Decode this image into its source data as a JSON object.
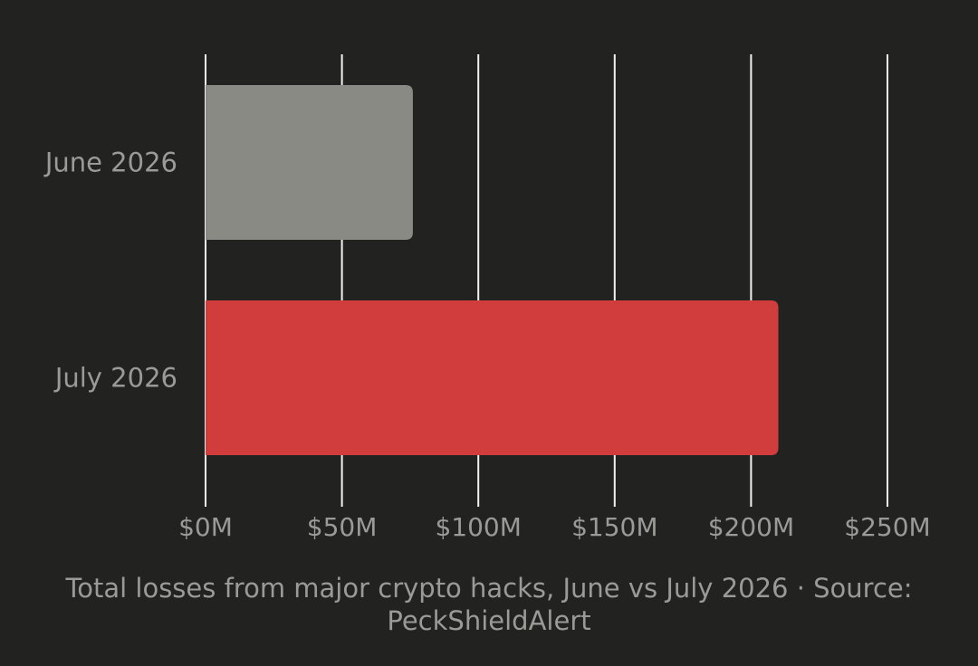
{
  "chart_data": {
    "type": "bar",
    "orientation": "horizontal",
    "categories": [
      "June 2026",
      "July 2026"
    ],
    "values": [
      76,
      210
    ],
    "units": "M USD",
    "bar_colors": [
      "#8a8a85",
      "#d13d3d"
    ],
    "x_ticks": [
      0,
      50,
      100,
      150,
      200,
      250
    ],
    "x_tick_labels": [
      "$0M",
      "$50M",
      "$100M",
      "$150M",
      "$200M",
      "$250M"
    ],
    "xlim": [
      0,
      250
    ],
    "grid": true,
    "legend": "none",
    "caption": "Total losses from major crypto hacks, June vs July 2026 · Source: PeckShieldAlert"
  },
  "colors": {
    "background": "#222221",
    "gridline": "#f2f2f2",
    "text": "#9a9a96"
  }
}
